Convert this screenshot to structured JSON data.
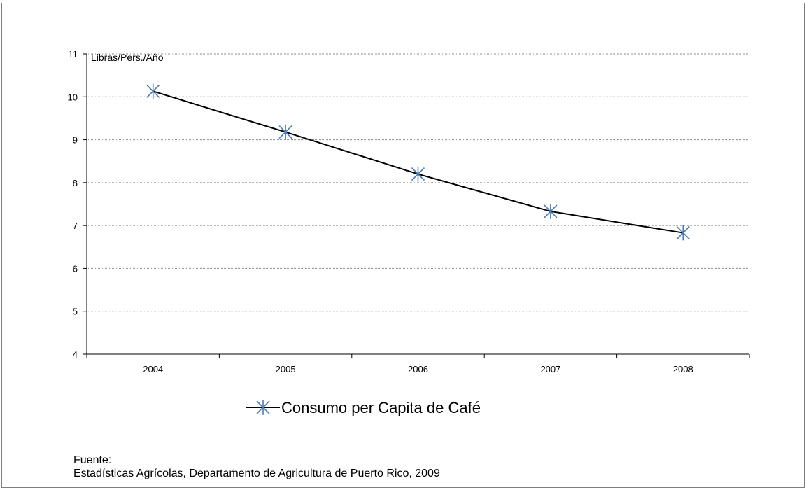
{
  "chart_data": {
    "type": "line",
    "title": "",
    "ylabel": "Libras/Pers./Año",
    "xlabel": "",
    "categories": [
      "2004",
      "2005",
      "2006",
      "2007",
      "2008"
    ],
    "series": [
      {
        "name": "Consumo per Capita de Café",
        "values": [
          10.13,
          9.18,
          8.2,
          7.33,
          6.83
        ]
      }
    ],
    "ylim": [
      4,
      11
    ],
    "yticks": [
      "4",
      "5",
      "6",
      "7",
      "8",
      "9",
      "10",
      "11"
    ],
    "grid": true,
    "legend_position": "bottom",
    "line_color": "#000000",
    "marker_color": "#4a7ab5"
  },
  "source": {
    "label": "Fuente:",
    "text": "Estadísticas Agrícolas, Departamento de Agricultura de Puerto Rico, 2009"
  }
}
